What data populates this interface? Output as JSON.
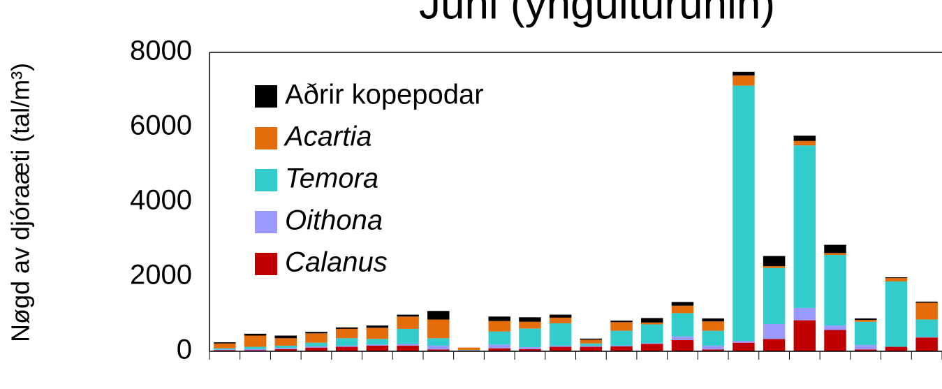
{
  "chart_data": {
    "type": "stacked_bar",
    "title": "Juni (yngulturunin)",
    "ylabel": "Nøgd av djóraæti (tal/m³)",
    "categories": [
      null,
      null,
      null,
      null,
      null,
      null,
      null,
      null,
      null,
      null,
      null,
      null,
      null,
      null,
      null,
      null,
      null,
      null,
      null,
      null,
      null,
      null,
      null,
      null
    ],
    "series": [
      {
        "name": "Calanus",
        "color": "#c00000",
        "values": [
          30,
          30,
          60,
          100,
          120,
          150,
          150,
          50,
          20,
          80,
          60,
          120,
          120,
          130,
          200,
          300,
          50,
          230,
          330,
          830,
          570,
          50,
          120,
          370
        ]
      },
      {
        "name": "Oithona",
        "color": "#9999ff",
        "values": [
          20,
          30,
          30,
          30,
          30,
          30,
          50,
          100,
          10,
          100,
          50,
          30,
          30,
          20,
          20,
          100,
          100,
          50,
          400,
          330,
          120,
          120,
          0,
          10
        ]
      },
      {
        "name": "Temora",
        "color": "#33cccc",
        "values": [
          30,
          60,
          60,
          100,
          200,
          150,
          400,
          200,
          10,
          350,
          500,
          600,
          60,
          400,
          500,
          620,
          400,
          6830,
          1500,
          4350,
          1890,
          620,
          1750,
          470
        ]
      },
      {
        "name": "Acartia",
        "color": "#e46c0a",
        "values": [
          130,
          300,
          200,
          250,
          250,
          300,
          330,
          500,
          60,
          280,
          180,
          150,
          100,
          230,
          50,
          200,
          250,
          270,
          50,
          120,
          50,
          50,
          90,
          450
        ]
      },
      {
        "name": "Aðrir kopepodar",
        "color": "#000000",
        "values": [
          30,
          50,
          70,
          40,
          40,
          60,
          50,
          230,
          0,
          120,
          120,
          80,
          30,
          40,
          120,
          100,
          80,
          100,
          270,
          140,
          220,
          40,
          20,
          30
        ]
      }
    ],
    "ylim": [
      0,
      8000
    ],
    "yticks": [
      0,
      2000,
      4000,
      6000,
      8000
    ]
  }
}
